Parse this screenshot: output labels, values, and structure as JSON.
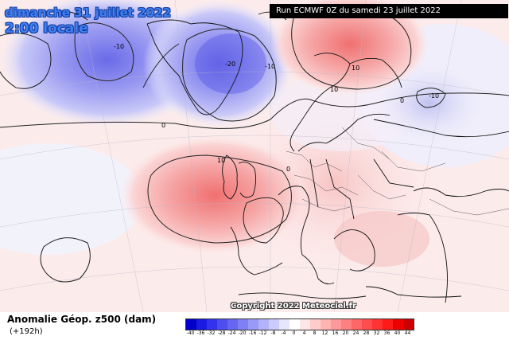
{
  "header": {
    "date_title": "dimanche 31 juillet 2022",
    "time_title": "2:00 locale",
    "run_info": "Run ECMWF 0Z du samedi 23 juillet 2022"
  },
  "map": {
    "copyright": "Copyright 2022 Meteociel.fr",
    "contour_labels": [
      "-10",
      "-20",
      "-10",
      "0",
      "10",
      "0",
      "-10",
      "10",
      "10",
      "0"
    ]
  },
  "footer": {
    "variable_title": "Anomalie Géop. z500 (dam)",
    "lead_time": "(+192h)"
  },
  "legend": {
    "labels": [
      "-40",
      "-36",
      "-32",
      "-28",
      "-24",
      "-20",
      "-16",
      "-12",
      "-8",
      "-4",
      "0",
      "4",
      "8",
      "12",
      "16",
      "20",
      "24",
      "28",
      "32",
      "36",
      "40",
      "44"
    ],
    "colors": [
      "#0000cc",
      "#1a1ae0",
      "#3333ee",
      "#4d4df0",
      "#6666f2",
      "#8080f5",
      "#9999f7",
      "#b3b3fa",
      "#ccccfc",
      "#e6e6fe",
      "#ffffff",
      "#ffe6e6",
      "#ffcccc",
      "#ffb3b3",
      "#ff9999",
      "#ff8080",
      "#ff6666",
      "#ff4d4d",
      "#ff3333",
      "#ff1a1a",
      "#ee0000",
      "#cc0000"
    ]
  },
  "colors": {
    "negative_anomaly": "#8c8cf0",
    "positive_anomaly": "#f28080",
    "title_text": "#3f7ff2"
  }
}
